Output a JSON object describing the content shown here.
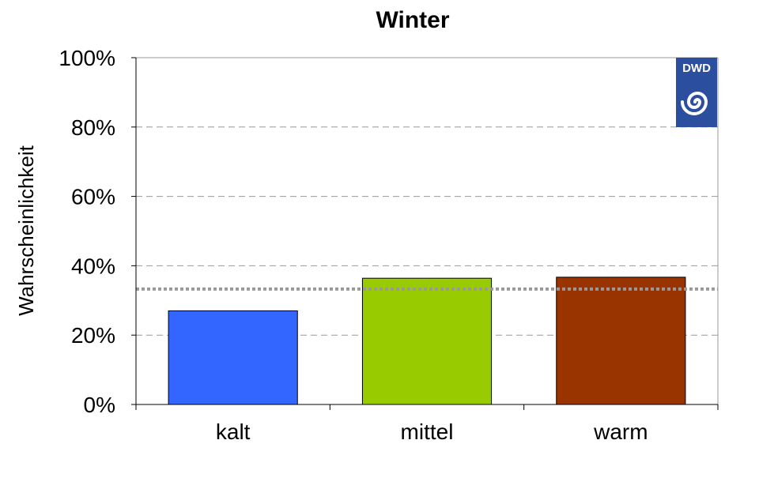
{
  "chart_data": {
    "type": "bar",
    "title": "Winter",
    "ylabel": "Wahrscheinlichkeit",
    "xlabel": "",
    "categories": [
      "kalt",
      "mittel",
      "warm"
    ],
    "values": [
      0.27,
      0.364,
      0.367
    ],
    "colors": [
      "#3366ff",
      "#99cc00",
      "#993300"
    ],
    "ylim": [
      0,
      1
    ],
    "yticks": [
      {
        "value": 0,
        "label": "0%"
      },
      {
        "value": 0.2,
        "label": "20%"
      },
      {
        "value": 0.4,
        "label": "40%"
      },
      {
        "value": 0.6,
        "label": "60%"
      },
      {
        "value": 0.8,
        "label": "80%"
      },
      {
        "value": 1.0,
        "label": "100%"
      }
    ],
    "grid": true,
    "reference_line": 0.333
  },
  "logo": {
    "text": "DWD",
    "background": "#2b4f9e"
  }
}
